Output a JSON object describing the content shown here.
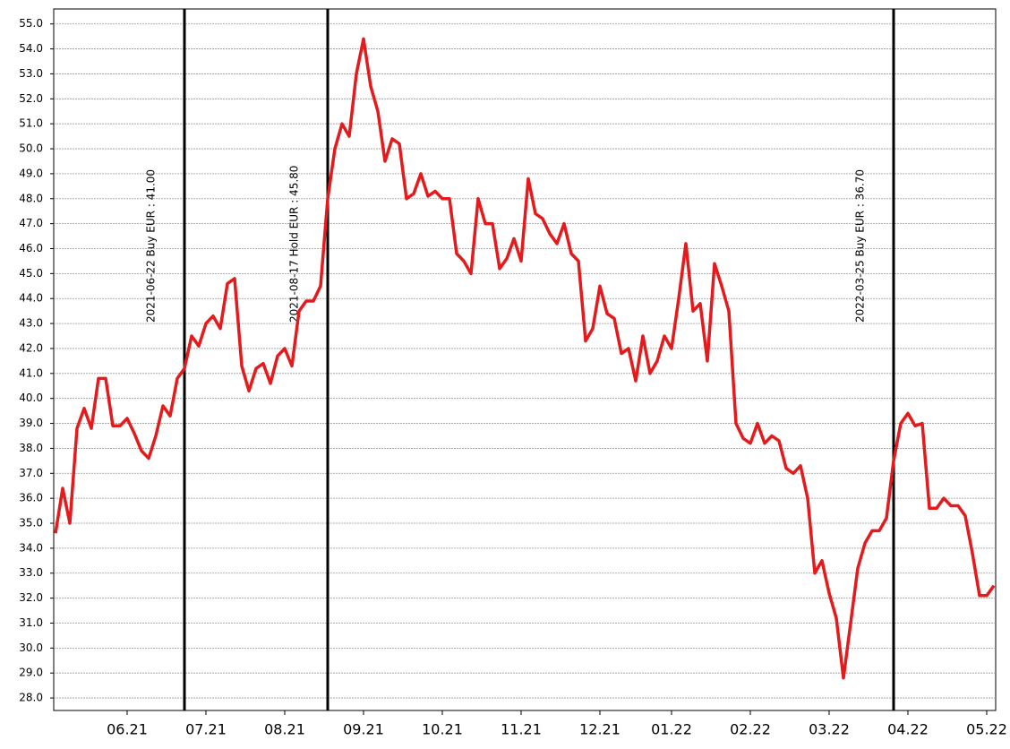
{
  "chart_data": {
    "type": "line",
    "categories": [
      null,
      null,
      null,
      null,
      null,
      null,
      null,
      null,
      null,
      null,
      "06.21",
      null,
      null,
      null,
      null,
      null,
      null,
      null,
      null,
      null,
      null,
      "07.21",
      null,
      null,
      null,
      null,
      null,
      null,
      null,
      null,
      null,
      null,
      "08.21",
      null,
      null,
      null,
      null,
      null,
      null,
      null,
      null,
      null,
      null,
      "09.21",
      null,
      null,
      null,
      null,
      null,
      null,
      null,
      null,
      null,
      null,
      "10.21",
      null,
      null,
      null,
      null,
      null,
      null,
      null,
      null,
      null,
      null,
      "11.21",
      null,
      null,
      null,
      null,
      null,
      null,
      null,
      null,
      null,
      null,
      "12.21",
      null,
      null,
      null,
      null,
      null,
      null,
      null,
      null,
      null,
      "01.22",
      null,
      null,
      null,
      null,
      null,
      null,
      null,
      null,
      null,
      null,
      "02.22",
      null,
      null,
      null,
      null,
      null,
      null,
      null,
      null,
      null,
      null,
      "03.22",
      null,
      null,
      null,
      null,
      null,
      null,
      null,
      null,
      null,
      null,
      "04.22",
      null,
      null,
      null,
      null,
      null,
      null,
      null,
      null,
      null,
      null,
      "05.22",
      null
    ],
    "series": [
      {
        "color": "#e41a1c",
        "values": [
          34.6,
          36.4,
          35.0,
          38.8,
          39.6,
          38.8,
          40.8,
          40.8,
          38.9,
          38.9,
          39.2,
          38.6,
          37.9,
          37.6,
          38.5,
          39.7,
          39.3,
          40.8,
          41.2,
          42.5,
          42.1,
          43.0,
          43.3,
          42.8,
          44.6,
          44.8,
          41.3,
          40.3,
          41.2,
          41.4,
          40.6,
          41.7,
          42.0,
          41.3,
          43.5,
          43.9,
          43.9,
          44.5,
          48.0,
          50.0,
          51.0,
          50.5,
          53.0,
          54.4,
          52.5,
          51.5,
          49.5,
          50.4,
          50.2,
          48.0,
          48.2,
          49.0,
          48.1,
          48.3,
          48.0,
          48.0,
          45.8,
          45.5,
          45.0,
          48.0,
          47.0,
          47.0,
          45.2,
          45.6,
          46.4,
          45.5,
          48.8,
          47.4,
          47.2,
          46.6,
          46.2,
          47.0,
          45.8,
          45.5,
          42.3,
          42.8,
          44.5,
          43.4,
          43.2,
          41.8,
          42.0,
          40.7,
          42.5,
          41.0,
          41.5,
          42.5,
          42.0,
          44.0,
          46.2,
          43.5,
          43.8,
          41.5,
          45.4,
          44.5,
          43.5,
          39.0,
          38.4,
          38.2,
          39.0,
          38.2,
          38.5,
          38.3,
          37.2,
          37.0,
          37.3,
          36.0,
          33.0,
          33.5,
          32.2,
          31.2,
          28.8,
          31.0,
          33.2,
          34.2,
          34.7,
          34.7,
          35.2,
          37.5,
          39.0,
          39.4,
          38.9,
          39.0,
          35.6,
          35.6,
          36.0,
          35.7,
          35.7,
          35.3,
          33.8,
          32.1,
          32.1,
          32.5
        ]
      }
    ],
    "annotations": [
      {
        "text": "2021-06-22 Buy EUR : 41.00",
        "index": 18
      },
      {
        "text": "2021-08-17 Hold EUR : 45.80",
        "index": 38
      },
      {
        "text": "2022-03-25 Buy EUR : 36.70",
        "index": 117
      }
    ],
    "ylim": [
      27.5,
      55.6
    ],
    "yticks": [
      {
        "value": 28,
        "label": "28.0"
      },
      {
        "value": 29,
        "label": "29.0"
      },
      {
        "value": 30,
        "label": "30.0"
      },
      {
        "value": 31,
        "label": "31.0"
      },
      {
        "value": 32,
        "label": "32.0"
      },
      {
        "value": 33,
        "label": "33.0"
      },
      {
        "value": 34,
        "label": "34.0"
      },
      {
        "value": 35,
        "label": "35.0"
      },
      {
        "value": 36,
        "label": "36.0"
      },
      {
        "value": 37,
        "label": "37.0"
      },
      {
        "value": 38,
        "label": "38.0"
      },
      {
        "value": 39,
        "label": "39.0"
      },
      {
        "value": 40,
        "label": "40.0"
      },
      {
        "value": 41,
        "label": "41.0"
      },
      {
        "value": 42,
        "label": "42.0"
      },
      {
        "value": 43,
        "label": "43.0"
      },
      {
        "value": 44,
        "label": "44.0"
      },
      {
        "value": 45,
        "label": "45.0"
      },
      {
        "value": 46,
        "label": "46.0"
      },
      {
        "value": 47,
        "label": "47.0"
      },
      {
        "value": 48,
        "label": "48.0"
      },
      {
        "value": 49,
        "label": "49.0"
      },
      {
        "value": 50,
        "label": "50.0"
      },
      {
        "value": 51,
        "label": "51.0"
      },
      {
        "value": 52,
        "label": "52.0"
      },
      {
        "value": 53,
        "label": "53.0"
      },
      {
        "value": 54,
        "label": "54.0"
      },
      {
        "value": 55,
        "label": "55.0"
      }
    ],
    "grid": true
  }
}
